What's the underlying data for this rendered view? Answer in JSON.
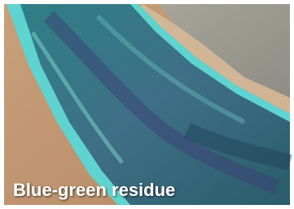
{
  "caption": "Blue-green residue"
}
